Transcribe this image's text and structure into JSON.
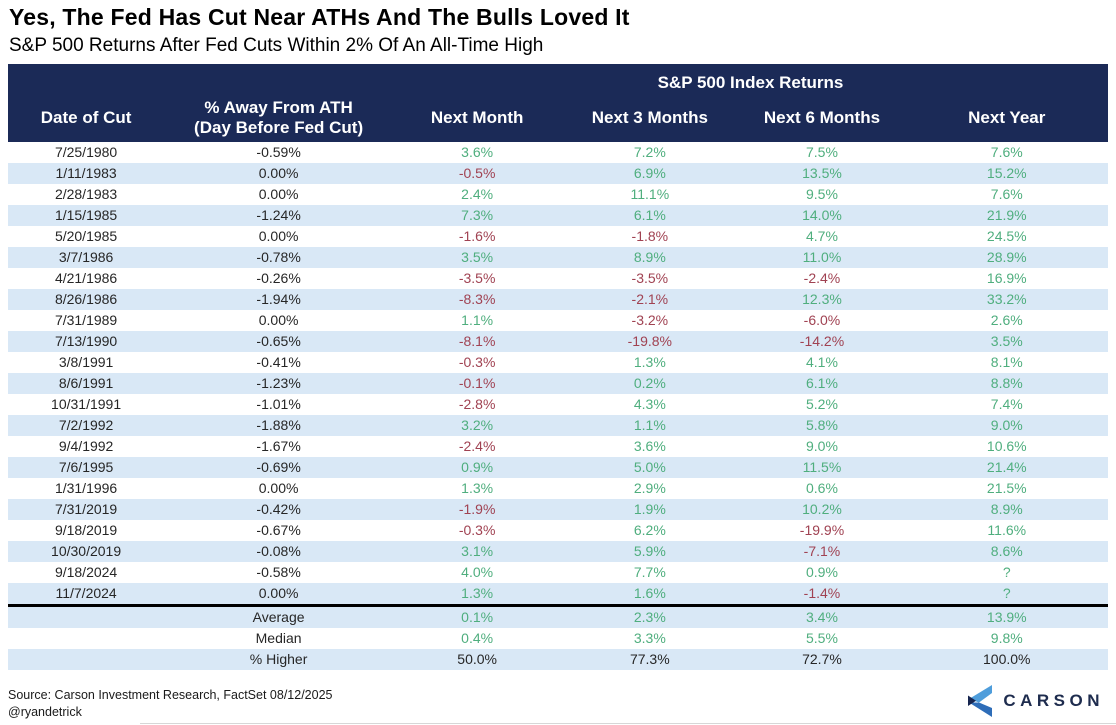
{
  "title": "Yes, The Fed Has Cut Near ATHs And The Bulls Loved It",
  "subtitle": "S&P 500 Returns After Fed Cuts Within 2% Of An All-Time High",
  "table": {
    "header": {
      "group": "S&P 500 Index Returns",
      "date": "Date of Cut",
      "away_line1": "% Away From ATH",
      "away_line2": "(Day Before Fed Cut)",
      "next_month": "Next Month",
      "next_3_months": "Next 3 Months",
      "next_6_months": "Next 6 Months",
      "next_year": "Next Year"
    }
  },
  "chart_data": {
    "type": "table",
    "title": "Yes, The Fed Has Cut Near ATHs And The Bulls Loved It",
    "subtitle": "S&P 500 Returns After Fed Cuts Within 2% Of An All-Time High",
    "group_header": "S&P 500 Index Returns",
    "columns": [
      "Date of Cut",
      "% Away From ATH (Day Before Fed Cut)",
      "Next Month",
      "Next 3 Months",
      "Next 6 Months",
      "Next Year"
    ],
    "rows": [
      [
        "7/25/1980",
        "-0.59%",
        "3.6%",
        "7.2%",
        "7.5%",
        "7.6%"
      ],
      [
        "1/11/1983",
        "0.00%",
        "-0.5%",
        "6.9%",
        "13.5%",
        "15.2%"
      ],
      [
        "2/28/1983",
        "0.00%",
        "2.4%",
        "11.1%",
        "9.5%",
        "7.6%"
      ],
      [
        "1/15/1985",
        "-1.24%",
        "7.3%",
        "6.1%",
        "14.0%",
        "21.9%"
      ],
      [
        "5/20/1985",
        "0.00%",
        "-1.6%",
        "-1.8%",
        "4.7%",
        "24.5%"
      ],
      [
        "3/7/1986",
        "-0.78%",
        "3.5%",
        "8.9%",
        "11.0%",
        "28.9%"
      ],
      [
        "4/21/1986",
        "-0.26%",
        "-3.5%",
        "-3.5%",
        "-2.4%",
        "16.9%"
      ],
      [
        "8/26/1986",
        "-1.94%",
        "-8.3%",
        "-2.1%",
        "12.3%",
        "33.2%"
      ],
      [
        "7/31/1989",
        "0.00%",
        "1.1%",
        "-3.2%",
        "-6.0%",
        "2.6%"
      ],
      [
        "7/13/1990",
        "-0.65%",
        "-8.1%",
        "-19.8%",
        "-14.2%",
        "3.5%"
      ],
      [
        "3/8/1991",
        "-0.41%",
        "-0.3%",
        "1.3%",
        "4.1%",
        "8.1%"
      ],
      [
        "8/6/1991",
        "-1.23%",
        "-0.1%",
        "0.2%",
        "6.1%",
        "8.8%"
      ],
      [
        "10/31/1991",
        "-1.01%",
        "-2.8%",
        "4.3%",
        "5.2%",
        "7.4%"
      ],
      [
        "7/2/1992",
        "-1.88%",
        "3.2%",
        "1.1%",
        "5.8%",
        "9.0%"
      ],
      [
        "9/4/1992",
        "-1.67%",
        "-2.4%",
        "3.6%",
        "9.0%",
        "10.6%"
      ],
      [
        "7/6/1995",
        "-0.69%",
        "0.9%",
        "5.0%",
        "11.5%",
        "21.4%"
      ],
      [
        "1/31/1996",
        "0.00%",
        "1.3%",
        "2.9%",
        "0.6%",
        "21.5%"
      ],
      [
        "7/31/2019",
        "-0.42%",
        "-1.9%",
        "1.9%",
        "10.2%",
        "8.9%"
      ],
      [
        "9/18/2019",
        "-0.67%",
        "-0.3%",
        "6.2%",
        "-19.9%",
        "11.6%"
      ],
      [
        "10/30/2019",
        "-0.08%",
        "3.1%",
        "5.9%",
        "-7.1%",
        "8.6%"
      ],
      [
        "9/18/2024",
        "-0.58%",
        "4.0%",
        "7.7%",
        "0.9%",
        "?"
      ],
      [
        "11/7/2024",
        "0.00%",
        "1.3%",
        "1.6%",
        "-1.4%",
        "?"
      ]
    ],
    "summary": [
      {
        "label": "Average",
        "values": [
          "0.1%",
          "2.3%",
          "3.4%",
          "13.9%"
        ],
        "colored": true
      },
      {
        "label": "Median",
        "values": [
          "0.4%",
          "3.3%",
          "5.5%",
          "9.8%"
        ],
        "colored": true
      },
      {
        "label": "% Higher",
        "values": [
          "50.0%",
          "77.3%",
          "72.7%",
          "100.0%"
        ],
        "colored": false
      }
    ]
  },
  "footer": {
    "source": "Source: Carson Investment Research, FactSet 08/12/2025",
    "handle": "@ryandetrick",
    "logo_text": "CARSON"
  },
  "colors": {
    "header_bg": "#1b2a57",
    "row_stripe": "#d9e8f6",
    "positive": "#4fae7e",
    "negative": "#a04252",
    "text": "#262626",
    "logo_navy": "#1e2c4e",
    "logo_blue_light": "#4e9ddb",
    "logo_blue_mid": "#2e6db8"
  }
}
